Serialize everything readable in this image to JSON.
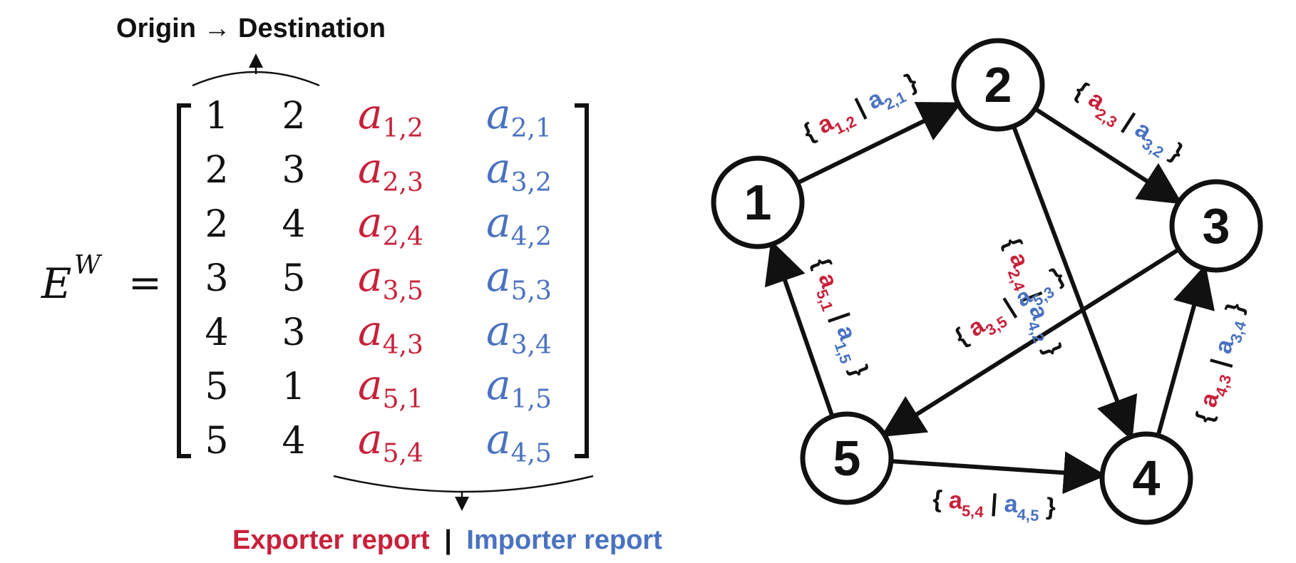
{
  "matrix": {
    "symbol": "E",
    "superscript": "W",
    "equals": "=",
    "rows": [
      {
        "origin": "1",
        "destination": "2",
        "exporter": {
          "base": "a",
          "sub": "1,2"
        },
        "importer": {
          "base": "a",
          "sub": "2,1"
        }
      },
      {
        "origin": "2",
        "destination": "3",
        "exporter": {
          "base": "a",
          "sub": "2,3"
        },
        "importer": {
          "base": "a",
          "sub": "3,2"
        }
      },
      {
        "origin": "2",
        "destination": "4",
        "exporter": {
          "base": "a",
          "sub": "2,4"
        },
        "importer": {
          "base": "a",
          "sub": "4,2"
        }
      },
      {
        "origin": "3",
        "destination": "5",
        "exporter": {
          "base": "a",
          "sub": "3,5"
        },
        "importer": {
          "base": "a",
          "sub": "5,3"
        }
      },
      {
        "origin": "4",
        "destination": "3",
        "exporter": {
          "base": "a",
          "sub": "4,3"
        },
        "importer": {
          "base": "a",
          "sub": "3,4"
        }
      },
      {
        "origin": "5",
        "destination": "1",
        "exporter": {
          "base": "a",
          "sub": "5,1"
        },
        "importer": {
          "base": "a",
          "sub": "1,5"
        }
      },
      {
        "origin": "5",
        "destination": "4",
        "exporter": {
          "base": "a",
          "sub": "5,4"
        },
        "importer": {
          "base": "a",
          "sub": "4,5"
        }
      }
    ]
  },
  "annotations": {
    "top": "Origin → Destination",
    "bottom_exporter": "Exporter report",
    "bottom_separator": "|",
    "bottom_importer": "Importer report"
  },
  "graph": {
    "nodes": [
      "1",
      "2",
      "3",
      "4",
      "5"
    ],
    "edges": [
      {
        "from": "1",
        "to": "2",
        "exporter": {
          "base": "a",
          "sub": "1,2"
        },
        "importer": {
          "base": "a",
          "sub": "2,1"
        }
      },
      {
        "from": "2",
        "to": "3",
        "exporter": {
          "base": "a",
          "sub": "2,3"
        },
        "importer": {
          "base": "a",
          "sub": "3,2"
        }
      },
      {
        "from": "2",
        "to": "4",
        "exporter": {
          "base": "a",
          "sub": "2,4"
        },
        "importer": {
          "base": "a",
          "sub": "4,2"
        }
      },
      {
        "from": "3",
        "to": "5",
        "exporter": {
          "base": "a",
          "sub": "3,5"
        },
        "importer": {
          "base": "a",
          "sub": "5,3"
        }
      },
      {
        "from": "4",
        "to": "3",
        "exporter": {
          "base": "a",
          "sub": "4,3"
        },
        "importer": {
          "base": "a",
          "sub": "3,4"
        }
      },
      {
        "from": "5",
        "to": "1",
        "exporter": {
          "base": "a",
          "sub": "5,1"
        },
        "importer": {
          "base": "a",
          "sub": "1,5"
        }
      },
      {
        "from": "5",
        "to": "4",
        "exporter": {
          "base": "a",
          "sub": "5,4"
        },
        "importer": {
          "base": "a",
          "sub": "4,5"
        }
      }
    ]
  },
  "colors": {
    "exporter": "#c8213a",
    "importer": "#4a72c0",
    "text": "#111111"
  }
}
